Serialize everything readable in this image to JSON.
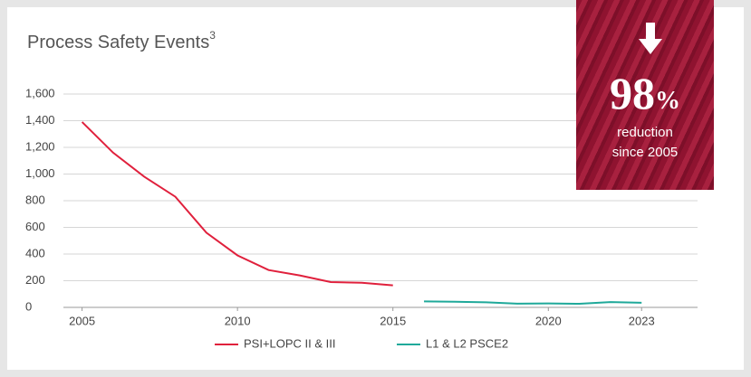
{
  "chart_data": {
    "type": "line",
    "title": "Process Safety Events",
    "title_note": "3",
    "x": [
      2005,
      2006,
      2007,
      2008,
      2009,
      2010,
      2011,
      2012,
      2013,
      2014,
      2015,
      2016,
      2017,
      2018,
      2019,
      2020,
      2021,
      2022,
      2023
    ],
    "series": [
      {
        "name": "PSI+LOPC II & III",
        "color": "#e0203c",
        "values": [
          1390,
          1160,
          980,
          830,
          560,
          390,
          280,
          240,
          190,
          185,
          165,
          null,
          null,
          null,
          null,
          null,
          null,
          null,
          null
        ]
      },
      {
        "name": "L1 & L2 PSCE2",
        "color": "#1fa99a",
        "values": [
          null,
          null,
          null,
          null,
          null,
          null,
          null,
          null,
          null,
          null,
          null,
          45,
          42,
          38,
          28,
          30,
          27,
          40,
          35
        ]
      }
    ],
    "xlim": [
      2004.4,
      2024.8
    ],
    "xticks": [
      2005,
      2010,
      2015,
      2020,
      2023
    ],
    "ylim": [
      0,
      1600
    ],
    "yticks": [
      0,
      200,
      400,
      600,
      800,
      {
        "value": 1000,
        "label": "1,000"
      },
      {
        "value": 1200,
        "label": "1,200"
      },
      {
        "value": 1400,
        "label": "1,400"
      },
      {
        "value": 1600,
        "label": "1,600"
      }
    ],
    "grid": true,
    "legend": "bottom"
  },
  "callout": {
    "value": "98",
    "unit": "%",
    "line1": "reduction",
    "line2": "since 2005"
  }
}
